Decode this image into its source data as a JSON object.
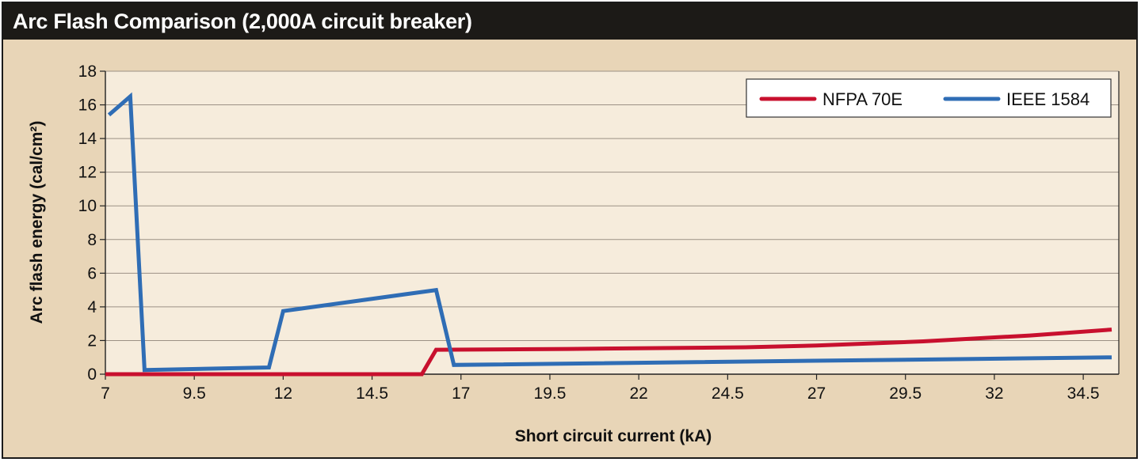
{
  "header": {
    "title": "Arc Flash Comparison (2,000A circuit breaker)"
  },
  "colors": {
    "panel_bg": "#e8d5b7",
    "plot_bg": "#f6ecdc",
    "nfpa": "#c8102e",
    "ieee": "#2f6db5",
    "grid": "#9c9185"
  },
  "chart_data": {
    "type": "line",
    "title": "Arc Flash Comparison (2,000A circuit breaker)",
    "xlabel": "Short circuit current (kA)",
    "ylabel": "Arc flash energy (cal/cm²)",
    "xlim": [
      7,
      35.5
    ],
    "ylim": [
      0,
      18
    ],
    "xticks": [
      "7",
      "9.5",
      "12",
      "14.5",
      "17",
      "19.5",
      "22",
      "24.5",
      "27",
      "29.5",
      "32",
      "34.5"
    ],
    "xtick_values": [
      7,
      9.5,
      12,
      14.5,
      17,
      19.5,
      22,
      24.5,
      27,
      29.5,
      32,
      34.5
    ],
    "yticks": [
      "0",
      "2",
      "4",
      "6",
      "8",
      "10",
      "12",
      "14",
      "16",
      "18"
    ],
    "ytick_values": [
      0,
      2,
      4,
      6,
      8,
      10,
      12,
      14,
      16,
      18
    ],
    "grid": "horizontal",
    "legend_position": "top-right",
    "series": [
      {
        "name": "NFPA 70E",
        "color": "#c8102e",
        "x": [
          7,
          15.9,
          16.3,
          20,
          25,
          27,
          30,
          33,
          35.3
        ],
        "y": [
          0,
          0,
          1.45,
          1.5,
          1.6,
          1.7,
          1.95,
          2.3,
          2.65
        ]
      },
      {
        "name": "IEEE 1584",
        "color": "#2f6db5",
        "x": [
          7.1,
          7.7,
          8.1,
          11.6,
          12,
          16.3,
          16.8,
          35.3
        ],
        "y": [
          15.4,
          16.5,
          0.25,
          0.4,
          3.75,
          5.0,
          0.55,
          1.0
        ]
      }
    ]
  }
}
